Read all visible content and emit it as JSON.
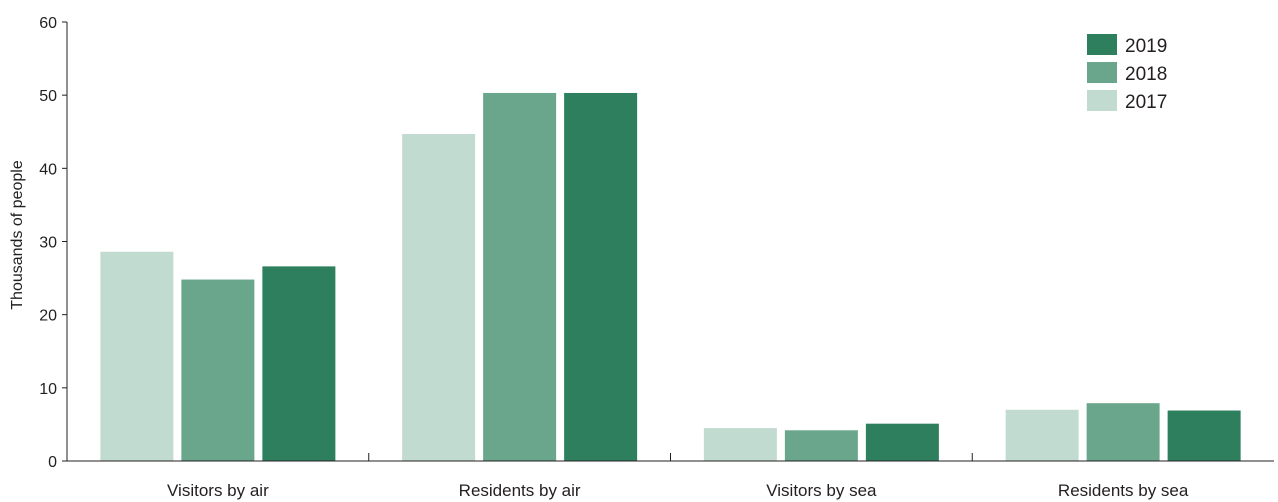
{
  "chart_data": {
    "type": "bar",
    "ylabel": "Thousands of people",
    "ylim": [
      0,
      60
    ],
    "yticks": [
      0,
      10,
      20,
      30,
      40,
      50,
      60
    ],
    "categories": [
      "Visitors by air",
      "Residents by air",
      "Visitors by sea",
      "Residents by sea"
    ],
    "series": [
      {
        "name": "2017",
        "color": "#c2dbd1",
        "values": [
          28.6,
          44.7,
          4.5,
          7.0
        ]
      },
      {
        "name": "2018",
        "color": "#6aa68c",
        "values": [
          24.8,
          50.3,
          4.2,
          7.9
        ]
      },
      {
        "name": "2019",
        "color": "#2e7f5e",
        "values": [
          26.6,
          50.3,
          5.1,
          6.9
        ]
      }
    ],
    "legend": {
      "placement": "top-right",
      "order": [
        "2019",
        "2018",
        "2017"
      ]
    },
    "grid": false
  }
}
